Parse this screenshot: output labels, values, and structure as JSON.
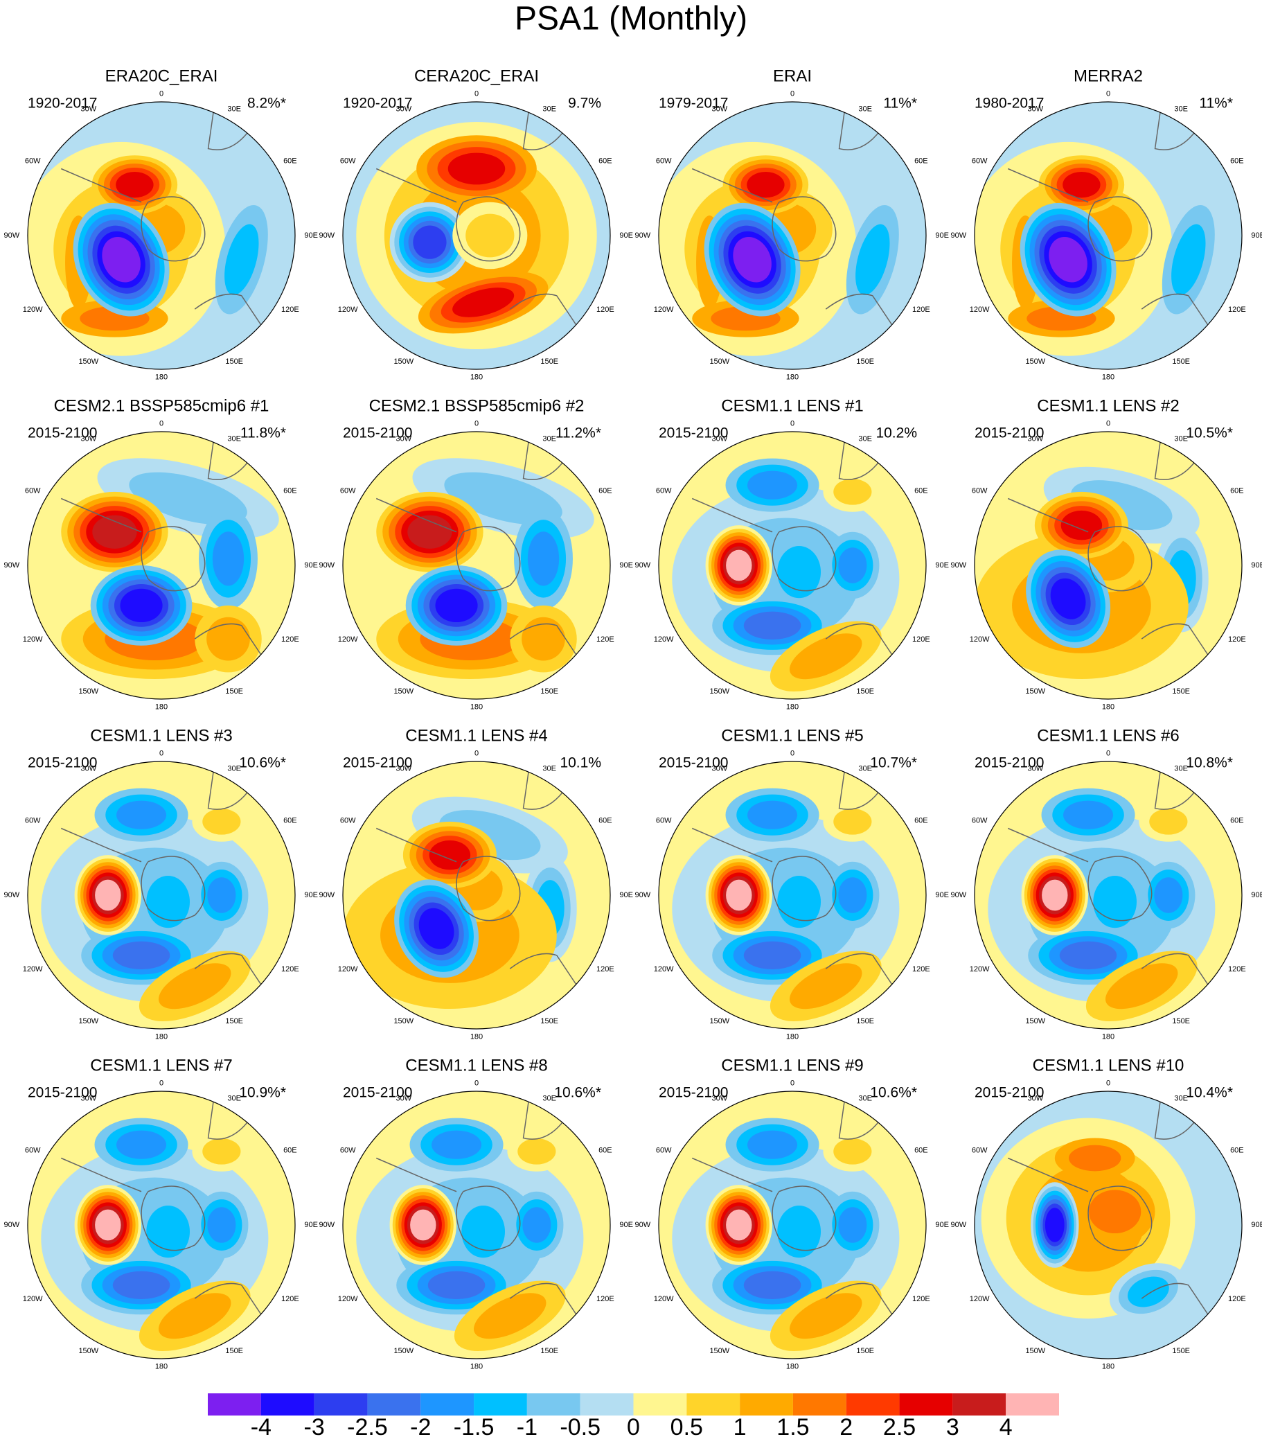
{
  "title": "PSA1 (Monthly)",
  "longitude_labels": [
    "0",
    "30E",
    "60E",
    "90E",
    "120E",
    "150E",
    "180",
    "150W",
    "120W",
    "90W",
    "60W",
    "30W"
  ],
  "panels": [
    {
      "title": "ERA20C_ERAI",
      "period": "1920-2017",
      "variance": "8.2%*"
    },
    {
      "title": "CERA20C_ERAI",
      "period": "1920-2017",
      "variance": "9.7%"
    },
    {
      "title": "ERAI",
      "period": "1979-2017",
      "variance": "11%*"
    },
    {
      "title": "MERRA2",
      "period": "1980-2017",
      "variance": "11%*"
    },
    {
      "title": "CESM2.1 BSSP585cmip6 #1",
      "period": "2015-2100",
      "variance": "11.8%*"
    },
    {
      "title": "CESM2.1 BSSP585cmip6 #2",
      "period": "2015-2100",
      "variance": "11.2%*"
    },
    {
      "title": "CESM1.1 LENS #1",
      "period": "2015-2100",
      "variance": "10.2%"
    },
    {
      "title": "CESM1.1 LENS #2",
      "period": "2015-2100",
      "variance": "10.5%*"
    },
    {
      "title": "CESM1.1 LENS #3",
      "period": "2015-2100",
      "variance": "10.6%*"
    },
    {
      "title": "CESM1.1 LENS #4",
      "period": "2015-2100",
      "variance": "10.1%"
    },
    {
      "title": "CESM1.1 LENS #5",
      "period": "2015-2100",
      "variance": "10.7%*"
    },
    {
      "title": "CESM1.1 LENS #6",
      "period": "2015-2100",
      "variance": "10.8%*"
    },
    {
      "title": "CESM1.1 LENS #7",
      "period": "2015-2100",
      "variance": "10.9%*"
    },
    {
      "title": "CESM1.1 LENS #8",
      "period": "2015-2100",
      "variance": "10.6%*"
    },
    {
      "title": "CESM1.1 LENS #9",
      "period": "2015-2100",
      "variance": "10.6%*"
    },
    {
      "title": "CESM1.1 LENS #10",
      "period": "2015-2100",
      "variance": "10.4%*"
    }
  ],
  "colorbar": {
    "levels": [
      -4,
      -3,
      -2.5,
      -2,
      -1.5,
      -1,
      -0.5,
      0,
      0.5,
      1,
      1.5,
      2,
      2.5,
      3,
      4
    ],
    "colors": [
      "#7d1ff0",
      "#1e0cff",
      "#2d3ef0",
      "#3a72ee",
      "#1e96ff",
      "#00c0ff",
      "#78c8f0",
      "#b4def2",
      "#fff690",
      "#ffd42a",
      "#ffaa00",
      "#ff7800",
      "#ff3a00",
      "#e60000",
      "#c81c1c",
      "#ffb4b4"
    ]
  }
}
